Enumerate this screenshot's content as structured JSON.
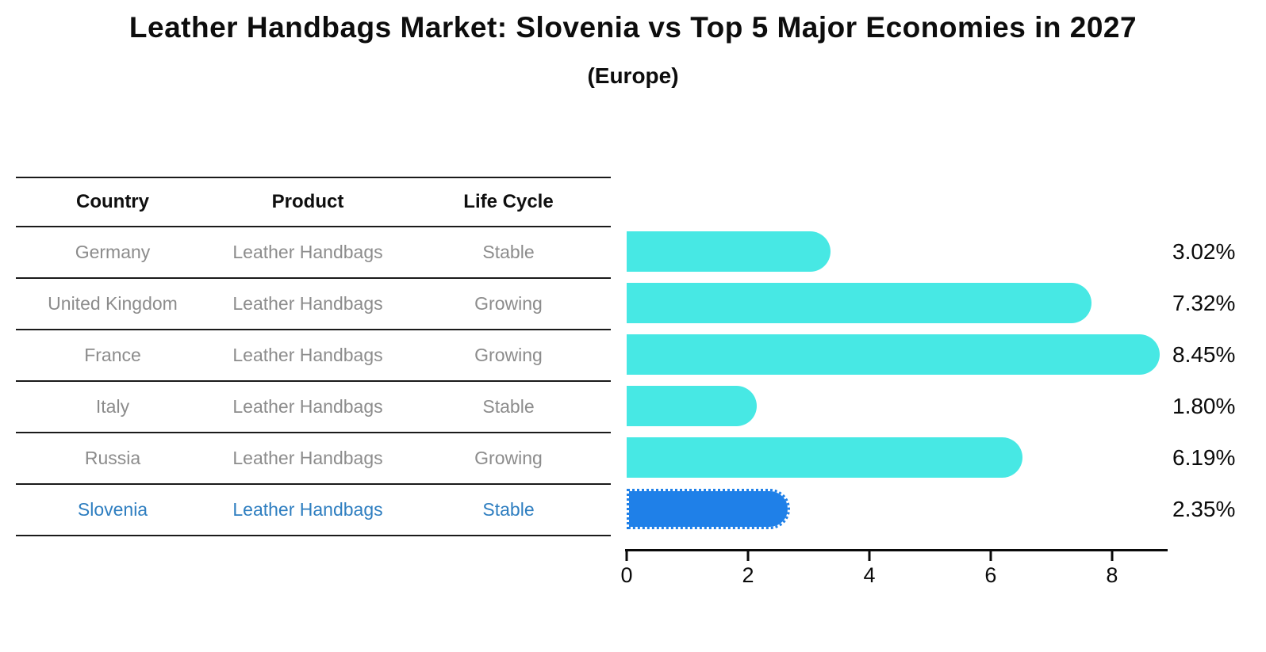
{
  "title": "Leather Handbags Market: Slovenia vs Top 5 Major Economies in 2027",
  "subtitle": "(Europe)",
  "table": {
    "headers": [
      "Country",
      "Product",
      "Life Cycle"
    ],
    "rows": [
      {
        "country": "Germany",
        "product": "Leather Handbags",
        "life_cycle": "Stable",
        "highlight": false
      },
      {
        "country": "United Kingdom",
        "product": "Leather Handbags",
        "life_cycle": "Growing",
        "highlight": false
      },
      {
        "country": "France",
        "product": "Leather Handbags",
        "life_cycle": "Growing",
        "highlight": false
      },
      {
        "country": "Italy",
        "product": "Leather Handbags",
        "life_cycle": "Stable",
        "highlight": false
      },
      {
        "country": "Russia",
        "product": "Leather Handbags",
        "life_cycle": "Growing",
        "highlight": false
      },
      {
        "country": "Slovenia",
        "product": "Leather Handbags",
        "life_cycle": "Stable",
        "highlight": true
      }
    ]
  },
  "chart_data": {
    "type": "bar",
    "orientation": "horizontal",
    "categories": [
      "Germany",
      "United Kingdom",
      "France",
      "Italy",
      "Russia",
      "Slovenia"
    ],
    "values": [
      3.02,
      7.32,
      8.45,
      1.8,
      6.19,
      2.35
    ],
    "labels": [
      "3.02%",
      "7.32%",
      "8.45%",
      "1.80%",
      "6.19%",
      "2.35%"
    ],
    "value_suffix": "%",
    "x_ticks": [
      0,
      2,
      4,
      6,
      8
    ],
    "xlim": [
      0,
      8.89
    ],
    "grid": false,
    "legend": false,
    "bar_color": "#47e8e4",
    "highlight_color": "#1f80e8",
    "highlight_index": 5,
    "highlight_text_color": "#2e7ec0",
    "row_text_color": "#8c8c8c"
  }
}
